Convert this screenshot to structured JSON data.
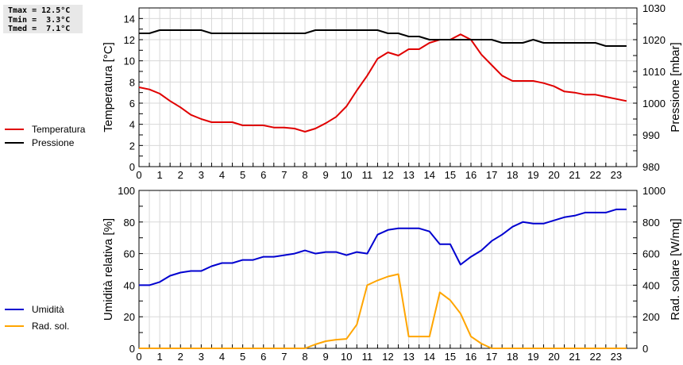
{
  "stats": {
    "lines": [
      "Tmax = 12.5°C",
      "Tmin =  3.3°C",
      "Tmed =  7.1°C"
    ]
  },
  "top_legend": [
    {
      "label": "Temperatura",
      "color": "#e00000"
    },
    {
      "label": "Pressione",
      "color": "#000000"
    }
  ],
  "bottom_legend": [
    {
      "label": "Umidità",
      "color": "#0000d0"
    },
    {
      "label": "Rad. sol.",
      "color": "#ffa500"
    }
  ],
  "chart_data": [
    {
      "type": "line",
      "title": "",
      "xlabel": "",
      "ylabel": "Temperatura [°C]",
      "y2label": "Pressione [mbar]",
      "xlim": [
        0,
        24
      ],
      "ylim": [
        0,
        15
      ],
      "y2lim": [
        980,
        1030
      ],
      "xticks": [
        "0",
        "1",
        "2",
        "3",
        "4",
        "5",
        "6",
        "7",
        "8",
        "9",
        "10",
        "11",
        "12",
        "13",
        "14",
        "15",
        "16",
        "17",
        "18",
        "19",
        "20",
        "21",
        "22",
        "23"
      ],
      "yticks": [
        "0",
        "2",
        "4",
        "6",
        "8",
        "10",
        "12",
        "14"
      ],
      "y2ticks": [
        "980",
        "990",
        "1000",
        "1010",
        "1020",
        "1030"
      ],
      "grid": true,
      "x": [
        0,
        0.5,
        1,
        1.5,
        2,
        2.5,
        3,
        3.5,
        4,
        4.5,
        5,
        5.5,
        6,
        6.5,
        7,
        7.5,
        8,
        8.5,
        9,
        9.5,
        10,
        10.5,
        11,
        11.5,
        12,
        12.5,
        13,
        13.5,
        14,
        14.5,
        15,
        15.5,
        16,
        16.5,
        17,
        17.5,
        18,
        18.5,
        19,
        19.5,
        20,
        20.5,
        21,
        21.5,
        22,
        22.5,
        23,
        23.5
      ],
      "series": [
        {
          "name": "Temperatura",
          "axis": "left",
          "color": "#e00000",
          "values": [
            7.5,
            7.3,
            6.9,
            6.2,
            5.6,
            4.9,
            4.5,
            4.2,
            4.2,
            4.2,
            3.9,
            3.9,
            3.9,
            3.7,
            3.7,
            3.6,
            3.3,
            3.6,
            4.1,
            4.7,
            5.7,
            7.2,
            8.6,
            10.2,
            10.8,
            10.5,
            11.1,
            11.1,
            11.7,
            12.0,
            12.0,
            12.5,
            12.0,
            10.6,
            9.6,
            8.6,
            8.1,
            8.1,
            8.1,
            7.9,
            7.6,
            7.1,
            7.0,
            6.8,
            6.8,
            6.6,
            6.4,
            6.2
          ]
        },
        {
          "name": "Pressione",
          "axis": "right",
          "color": "#000000",
          "values": [
            1022,
            1022,
            1023,
            1023,
            1023,
            1023,
            1023,
            1022,
            1022,
            1022,
            1022,
            1022,
            1022,
            1022,
            1022,
            1022,
            1022,
            1023,
            1023,
            1023,
            1023,
            1023,
            1023,
            1023,
            1022,
            1022,
            1021,
            1021,
            1020,
            1020,
            1020,
            1020,
            1020,
            1020,
            1020,
            1019,
            1019,
            1019,
            1020,
            1019,
            1019,
            1019,
            1019,
            1019,
            1019,
            1018,
            1018,
            1018
          ]
        }
      ]
    },
    {
      "type": "line",
      "title": "",
      "xlabel": "",
      "ylabel": "Umidità relativa [%]",
      "y2label": "Rad. solare [W/mq]",
      "xlim": [
        0,
        24
      ],
      "ylim": [
        0,
        100
      ],
      "y2lim": [
        0,
        1000
      ],
      "xticks": [
        "0",
        "1",
        "2",
        "3",
        "4",
        "5",
        "6",
        "7",
        "8",
        "9",
        "10",
        "11",
        "12",
        "13",
        "14",
        "15",
        "16",
        "17",
        "18",
        "19",
        "20",
        "21",
        "22",
        "23"
      ],
      "yticks": [
        "0",
        "20",
        "40",
        "60",
        "80",
        "100"
      ],
      "y2ticks": [
        "0",
        "200",
        "400",
        "600",
        "800",
        "1000"
      ],
      "grid": true,
      "x": [
        0,
        0.5,
        1,
        1.5,
        2,
        2.5,
        3,
        3.5,
        4,
        4.5,
        5,
        5.5,
        6,
        6.5,
        7,
        7.5,
        8,
        8.5,
        9,
        9.5,
        10,
        10.5,
        11,
        11.5,
        12,
        12.5,
        13,
        13.5,
        14,
        14.5,
        15,
        15.5,
        16,
        16.5,
        17,
        17.5,
        18,
        18.5,
        19,
        19.5,
        20,
        20.5,
        21,
        21.5,
        22,
        22.5,
        23,
        23.5
      ],
      "series": [
        {
          "name": "Umidità",
          "axis": "left",
          "color": "#0000d0",
          "values": [
            40,
            40,
            42,
            46,
            48,
            49,
            49,
            52,
            54,
            54,
            56,
            56,
            58,
            58,
            59,
            60,
            62,
            60,
            61,
            61,
            59,
            61,
            60,
            72,
            75,
            76,
            76,
            76,
            74,
            66,
            66,
            53,
            58,
            62,
            68,
            72,
            77,
            80,
            79,
            79,
            81,
            83,
            84,
            86,
            86,
            86,
            88,
            88
          ]
        },
        {
          "name": "Rad. sol.",
          "axis": "right",
          "color": "#ffa500",
          "values": [
            0,
            0,
            0,
            0,
            0,
            0,
            0,
            0,
            0,
            0,
            0,
            0,
            0,
            0,
            0,
            0,
            0,
            25,
            45,
            55,
            60,
            150,
            400,
            430,
            455,
            470,
            75,
            75,
            75,
            355,
            305,
            220,
            75,
            30,
            0,
            0,
            0,
            0,
            0,
            0,
            0,
            0,
            0,
            0,
            0,
            0,
            0,
            0
          ]
        }
      ]
    }
  ]
}
